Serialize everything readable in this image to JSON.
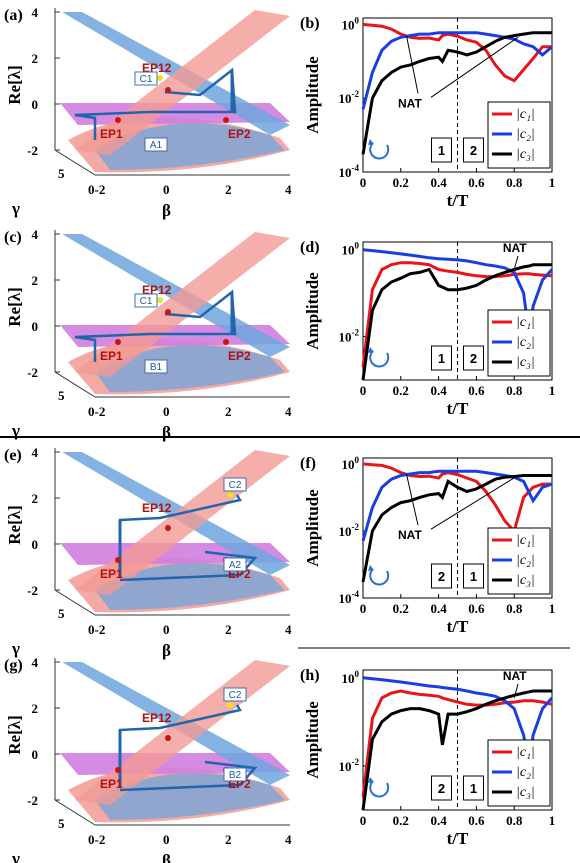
{
  "figure": {
    "panels_3d": [
      {
        "letter": "(a)",
        "ep_labels": [
          "EP12",
          "EP1",
          "EP2"
        ],
        "tag_top": "C1",
        "tag_bottom": "A1"
      },
      {
        "letter": "(c)",
        "ep_labels": [
          "EP12",
          "EP1",
          "EP2"
        ],
        "tag_top": "C1",
        "tag_bottom": "B1"
      },
      {
        "letter": "(e)",
        "ep_labels": [
          "EP12",
          "EP1",
          "EP2"
        ],
        "tag_top": "C2",
        "tag_bottom": "A2"
      },
      {
        "letter": "(g)",
        "ep_labels": [
          "EP12",
          "EP1",
          "EP2"
        ],
        "tag_top": "C2",
        "tag_bottom": "B2"
      }
    ],
    "axes_3d": {
      "zlabel": "Re[λ]",
      "z_ticks": [
        "4",
        "2",
        "0",
        "-2"
      ],
      "gamma_label": "γ",
      "gamma_ticks": [
        "5",
        "0"
      ],
      "beta_label": "β",
      "beta_ticks": [
        "-2",
        "0",
        "2",
        "4"
      ]
    },
    "panels_2d": [
      {
        "letter": "(b)",
        "order": [
          "1",
          "2"
        ],
        "nat": "NAT"
      },
      {
        "letter": "(d)",
        "order": [
          "1",
          "2"
        ],
        "nat": "NAT"
      },
      {
        "letter": "(f)",
        "order": [
          "2",
          "1"
        ],
        "nat": "NAT"
      },
      {
        "letter": "(h)",
        "order": [
          "2",
          "1"
        ],
        "nat": "NAT"
      }
    ],
    "axes_2d": {
      "ylabel": "Amplitude",
      "xlabel": "t/T",
      "x_ticks": [
        "0",
        "0.2",
        "0.4",
        "0.6",
        "0.8",
        "1"
      ],
      "legend": [
        "|c₁|",
        "|c₂|",
        "|c₃|"
      ]
    },
    "colors": {
      "c1": "#e8141c",
      "c2": "#1a3fe0",
      "c3": "#000000",
      "surface_red": "#f39a94",
      "surface_blue": "#6fa6de",
      "surface_magenta": "#d27ee0",
      "ep_marker": "#c81414",
      "path_blue": "#2166ac"
    }
  },
  "chart_data": [
    {
      "panel": "(b)",
      "type": "line",
      "xlabel": "t/T",
      "ylabel": "Amplitude",
      "yscale": "log",
      "xlim": [
        0,
        1
      ],
      "ylim": [
        0.0001,
        1.5
      ],
      "y_ticks": [
        "10^0",
        "10^-2",
        "10^-4"
      ],
      "x": [
        0,
        0.05,
        0.1,
        0.15,
        0.2,
        0.25,
        0.3,
        0.35,
        0.4,
        0.42,
        0.45,
        0.5,
        0.55,
        0.6,
        0.65,
        0.7,
        0.75,
        0.8,
        0.85,
        0.9,
        0.95,
        1
      ],
      "series": [
        {
          "name": "|c₁|",
          "values": [
            1.0,
            0.95,
            0.9,
            0.75,
            0.55,
            0.45,
            0.42,
            0.43,
            0.38,
            0.5,
            0.55,
            0.48,
            0.38,
            0.33,
            0.2,
            0.08,
            0.04,
            0.03,
            0.06,
            0.12,
            0.25,
            0.25
          ]
        },
        {
          "name": "|c₂|",
          "values": [
            0.005,
            0.05,
            0.2,
            0.35,
            0.45,
            0.5,
            0.55,
            0.55,
            0.6,
            0.6,
            0.6,
            0.6,
            0.6,
            0.6,
            0.55,
            0.5,
            0.45,
            0.4,
            0.3,
            0.25,
            0.15,
            0.25
          ]
        },
        {
          "name": "|c₃|",
          "values": [
            0.0003,
            0.01,
            0.03,
            0.05,
            0.07,
            0.08,
            0.1,
            0.12,
            0.13,
            0.1,
            0.2,
            0.18,
            0.15,
            0.18,
            0.25,
            0.35,
            0.45,
            0.5,
            0.55,
            0.6,
            0.6,
            0.6
          ]
        }
      ]
    },
    {
      "panel": "(d)",
      "type": "line",
      "xlabel": "t/T",
      "ylabel": "Amplitude",
      "yscale": "log",
      "xlim": [
        0,
        1
      ],
      "ylim": [
        0.001,
        1.5
      ],
      "y_ticks": [
        "10^0",
        "10^-2"
      ],
      "x": [
        0,
        0.05,
        0.1,
        0.15,
        0.2,
        0.25,
        0.3,
        0.35,
        0.4,
        0.45,
        0.5,
        0.55,
        0.6,
        0.65,
        0.7,
        0.75,
        0.8,
        0.85,
        0.88,
        0.9,
        0.95,
        1
      ],
      "series": [
        {
          "name": "|c₁|",
          "values": [
            0.002,
            0.12,
            0.35,
            0.45,
            0.5,
            0.5,
            0.48,
            0.45,
            0.35,
            0.32,
            0.3,
            0.27,
            0.25,
            0.24,
            0.24,
            0.25,
            0.27,
            0.28,
            0.28,
            0.27,
            0.26,
            0.25
          ]
        },
        {
          "name": "|c₂|",
          "values": [
            1.0,
            0.95,
            0.9,
            0.85,
            0.8,
            0.75,
            0.7,
            0.65,
            0.62,
            0.6,
            0.58,
            0.55,
            0.5,
            0.45,
            0.42,
            0.38,
            0.3,
            0.1,
            0.01,
            0.05,
            0.2,
            0.35
          ]
        },
        {
          "name": "|c₃|",
          "values": [
            0.001,
            0.04,
            0.12,
            0.18,
            0.22,
            0.28,
            0.3,
            0.35,
            0.15,
            0.12,
            0.12,
            0.13,
            0.15,
            0.2,
            0.25,
            0.3,
            0.35,
            0.4,
            0.42,
            0.45,
            0.45,
            0.45
          ]
        }
      ]
    },
    {
      "panel": "(f)",
      "type": "line",
      "xlabel": "t/T",
      "ylabel": "Amplitude",
      "yscale": "log",
      "xlim": [
        0,
        1
      ],
      "ylim": [
        0.0001,
        1.5
      ],
      "y_ticks": [
        "10^0",
        "10^-2",
        "10^-4"
      ],
      "x": [
        0,
        0.05,
        0.1,
        0.15,
        0.2,
        0.25,
        0.3,
        0.35,
        0.4,
        0.42,
        0.45,
        0.5,
        0.55,
        0.6,
        0.65,
        0.7,
        0.75,
        0.8,
        0.85,
        0.9,
        0.95,
        1
      ],
      "series": [
        {
          "name": "|c₁|",
          "values": [
            1.0,
            0.95,
            0.9,
            0.75,
            0.55,
            0.45,
            0.42,
            0.43,
            0.38,
            0.5,
            0.55,
            0.48,
            0.38,
            0.3,
            0.15,
            0.06,
            0.02,
            0.01,
            0.1,
            0.2,
            0.25,
            0.25
          ]
        },
        {
          "name": "|c₂|",
          "values": [
            0.005,
            0.05,
            0.2,
            0.35,
            0.45,
            0.5,
            0.55,
            0.55,
            0.6,
            0.6,
            0.6,
            0.6,
            0.6,
            0.6,
            0.55,
            0.5,
            0.45,
            0.4,
            0.3,
            0.08,
            0.2,
            0.25
          ]
        },
        {
          "name": "|c₃|",
          "values": [
            0.0003,
            0.01,
            0.03,
            0.05,
            0.07,
            0.08,
            0.1,
            0.12,
            0.13,
            0.1,
            0.3,
            0.2,
            0.15,
            0.18,
            0.25,
            0.35,
            0.4,
            0.42,
            0.45,
            0.45,
            0.45,
            0.45
          ]
        }
      ]
    },
    {
      "panel": "(h)",
      "type": "line",
      "xlabel": "t/T",
      "ylabel": "Amplitude",
      "yscale": "log",
      "xlim": [
        0,
        1
      ],
      "ylim": [
        0.001,
        1.5
      ],
      "y_ticks": [
        "10^0",
        "10^-2"
      ],
      "x": [
        0,
        0.05,
        0.1,
        0.15,
        0.2,
        0.25,
        0.3,
        0.35,
        0.4,
        0.42,
        0.45,
        0.5,
        0.55,
        0.6,
        0.65,
        0.7,
        0.75,
        0.8,
        0.85,
        0.88,
        0.9,
        0.95,
        1
      ],
      "series": [
        {
          "name": "|c₁|",
          "values": [
            0.002,
            0.12,
            0.35,
            0.45,
            0.5,
            0.45,
            0.42,
            0.4,
            0.38,
            0.35,
            0.32,
            0.28,
            0.25,
            0.24,
            0.24,
            0.25,
            0.27,
            0.28,
            0.3,
            0.3,
            0.3,
            0.28,
            0.25
          ]
        },
        {
          "name": "|c₂|",
          "values": [
            1.0,
            0.95,
            0.9,
            0.85,
            0.8,
            0.75,
            0.7,
            0.65,
            0.62,
            0.6,
            0.58,
            0.55,
            0.5,
            0.45,
            0.42,
            0.38,
            0.3,
            0.2,
            0.05,
            0.01,
            0.05,
            0.2,
            0.35
          ]
        },
        {
          "name": "|c₃|",
          "values": [
            0.001,
            0.04,
            0.1,
            0.15,
            0.18,
            0.2,
            0.2,
            0.18,
            0.15,
            0.03,
            0.15,
            0.15,
            0.17,
            0.2,
            0.25,
            0.3,
            0.35,
            0.4,
            0.45,
            0.48,
            0.5,
            0.5,
            0.5
          ]
        }
      ]
    }
  ]
}
